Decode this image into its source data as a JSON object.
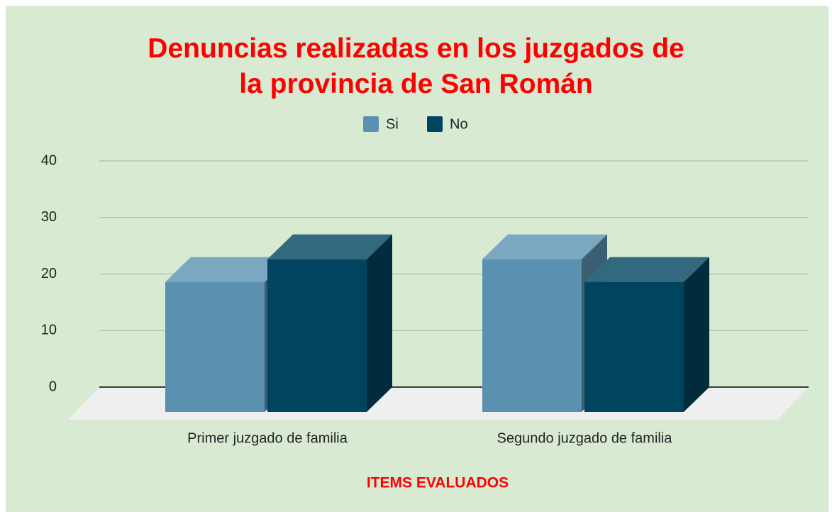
{
  "chart_data": {
    "type": "bar3d",
    "title": "Denuncias realizadas en los juzgados de la provincia de San Román",
    "x_label": "ITEMS EVALUADOS",
    "categories": [
      "Primer juzgado de familia",
      "Segundo juzgado de familia"
    ],
    "series": [
      {
        "name": "Si",
        "color": "#5a91b0",
        "values": [
          23,
          27
        ]
      },
      {
        "name": "No",
        "color": "#00445f",
        "values": [
          27,
          23
        ]
      }
    ],
    "ylim": [
      0,
      40
    ],
    "yticks": [
      0,
      10,
      20,
      30,
      40
    ],
    "grid": true,
    "legend": "top"
  }
}
